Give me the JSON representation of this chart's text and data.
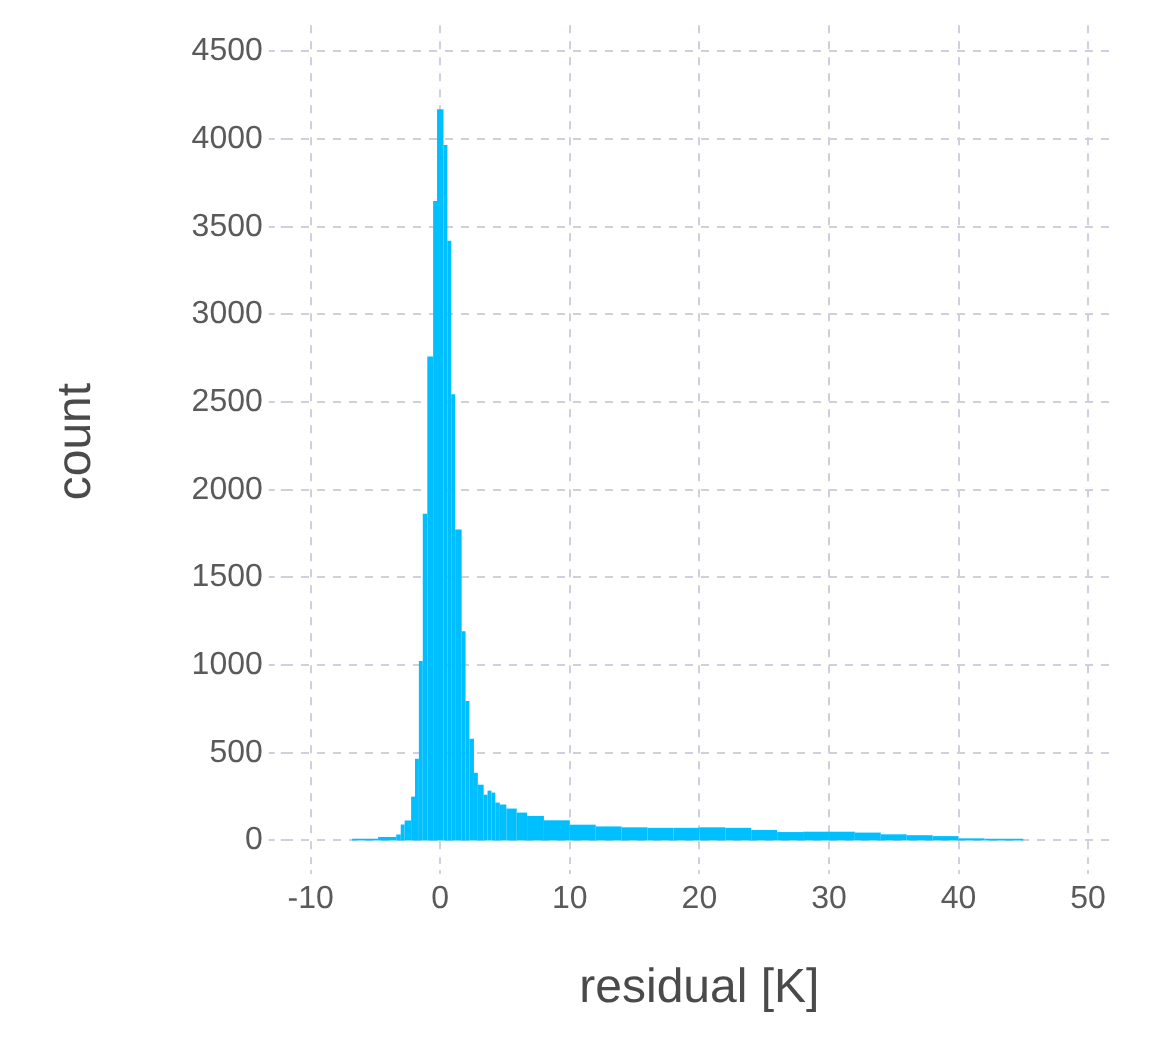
{
  "chart_data": {
    "type": "histogram",
    "xlabel": "residual [K]",
    "ylabel": "count",
    "color": "#00bfff",
    "bins": [
      -6.8,
      -4.8,
      -3.4,
      -3.05,
      -2.75,
      -2.25,
      -1.95,
      -1.65,
      -1.35,
      -1.0,
      -0.55,
      -0.25,
      0.25,
      0.55,
      0.85,
      1.15,
      1.65,
      1.95,
      2.25,
      2.6,
      2.9,
      3.35,
      3.65,
      3.95,
      4.25,
      4.6,
      5.1,
      5.9,
      6.7,
      8,
      10,
      12,
      14,
      16,
      18,
      20,
      22,
      24,
      26,
      28,
      30,
      32,
      34,
      36,
      38,
      40,
      42,
      45
    ],
    "values": [
      10,
      20,
      34,
      91,
      114,
      250,
      466,
      1023,
      1864,
      2761,
      3648,
      4170,
      3966,
      3420,
      2545,
      1773,
      1193,
      795,
      580,
      386,
      318,
      261,
      284,
      273,
      216,
      205,
      182,
      159,
      140,
      115,
      90,
      80,
      75,
      72,
      72,
      75,
      72,
      60,
      48,
      50,
      50,
      45,
      35,
      30,
      25,
      12,
      10
    ],
    "xlim": [
      -12,
      52
    ],
    "xticks": [
      -10,
      0,
      10,
      20,
      30,
      40,
      50
    ],
    "ylim": [
      -100,
      4650
    ],
    "yticks": [
      0,
      500,
      1000,
      1500,
      2000,
      2500,
      3000,
      3500,
      4000,
      4500
    ],
    "grid": true
  }
}
